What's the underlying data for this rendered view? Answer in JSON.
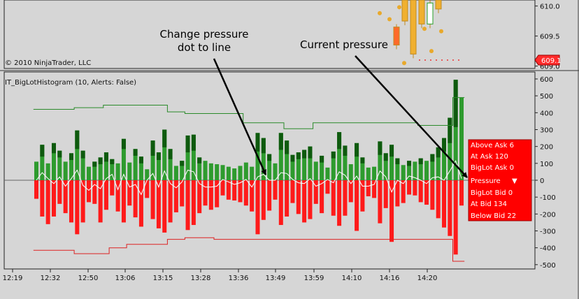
{
  "top_panel": {
    "copyright": "© 2010 NinjaTrader, LLC",
    "price_ticks": [
      "610.0",
      "609.5",
      "609.0"
    ],
    "price_tick_values": [
      610.0,
      609.5,
      609.0
    ],
    "current_price": "609.1",
    "current_price_value": 609.1,
    "ylim": [
      608.96,
      610.1
    ]
  },
  "indicator": {
    "title": "IT_BigLotHistogram (10, Alerts: False)",
    "y_ticks": [
      "600",
      "500",
      "400",
      "300",
      "200",
      "100",
      "0",
      "-100",
      "-200",
      "-300",
      "-400",
      "-500"
    ],
    "y_tick_values": [
      600,
      500,
      400,
      300,
      200,
      100,
      0,
      -100,
      -200,
      -300,
      -400,
      -500
    ]
  },
  "x_axis": {
    "labels": [
      "12:19",
      "12:32",
      "12:50",
      "13:06",
      "13:15",
      "13:28",
      "13:36",
      "13:49",
      "13:59",
      "14:10",
      "14:16",
      "14:20"
    ]
  },
  "info_box": {
    "above_ask": "Above Ask 6",
    "at_ask": "At Ask 120",
    "biglot_ask": "BigLot Ask 0",
    "pressure": "Pressure",
    "pressure_arrow": "▼",
    "biglot_bid": "BigLot Bid 0",
    "at_bid": "At Bid 134",
    "below_bid": "Below Bid 22"
  },
  "annotations": {
    "change_line1": "Change pressure",
    "change_line2": "dot to line",
    "current": "Current pressure"
  },
  "colors": {
    "ask_bar": "#2e9b2e",
    "ask_bar_dark": "#0e5a0e",
    "bid_bar": "#ff1a1a",
    "bid_bar_dark": "#8a0a0a",
    "upper_line": "#2a8a2a",
    "lower_line": "#dd2222",
    "info_bg": "#ff0000",
    "background": "#d6d6d6"
  },
  "chart_data": {
    "type": "bar",
    "ylim": [
      -515,
      630
    ],
    "ask": [
      110,
      210,
      100,
      220,
      175,
      110,
      160,
      295,
      175,
      80,
      110,
      135,
      165,
      125,
      100,
      245,
      105,
      185,
      140,
      65,
      235,
      165,
      300,
      185,
      85,
      115,
      265,
      270,
      135,
      115,
      100,
      95,
      90,
      80,
      70,
      85,
      105,
      80,
      280,
      250,
      155,
      100,
      280,
      235,
      150,
      165,
      180,
      200,
      110,
      145,
      75,
      170,
      285,
      205,
      95,
      220,
      135,
      75,
      80,
      230,
      160,
      210,
      130,
      90,
      115,
      110,
      130,
      115,
      155,
      195,
      250,
      370,
      595,
      490
    ],
    "ask_dark": [
      0,
      70,
      0,
      60,
      40,
      0,
      40,
      110,
      45,
      0,
      30,
      40,
      55,
      30,
      0,
      60,
      0,
      40,
      40,
      0,
      90,
      45,
      105,
      60,
      0,
      30,
      100,
      95,
      35,
      0,
      0,
      0,
      0,
      0,
      0,
      0,
      0,
      0,
      110,
      90,
      40,
      0,
      100,
      80,
      40,
      40,
      50,
      70,
      0,
      40,
      0,
      40,
      100,
      60,
      0,
      80,
      35,
      0,
      0,
      80,
      45,
      70,
      35,
      0,
      30,
      0,
      35,
      0,
      45,
      60,
      80,
      150,
      280,
      0
    ],
    "bid": [
      -110,
      -215,
      -260,
      -215,
      -140,
      -195,
      -250,
      -320,
      -250,
      -130,
      -140,
      -250,
      -175,
      -90,
      -185,
      -250,
      -150,
      -220,
      -275,
      -105,
      -230,
      -285,
      -310,
      -250,
      -190,
      -155,
      -295,
      -265,
      -195,
      -150,
      -175,
      -160,
      -90,
      -115,
      -120,
      -130,
      -150,
      -185,
      -320,
      -235,
      -180,
      -115,
      -265,
      -215,
      -135,
      -200,
      -250,
      -230,
      -140,
      -195,
      -80,
      -210,
      -270,
      -210,
      -130,
      -300,
      -185,
      -95,
      -105,
      -255,
      -165,
      -365,
      -155,
      -135,
      -85,
      -90,
      -130,
      -145,
      -175,
      -225,
      -280,
      -330,
      -440,
      -150
    ],
    "bid_dark": [
      -50,
      -80,
      -90,
      -70,
      -40,
      -60,
      -90,
      -110,
      -90,
      -40,
      -40,
      -90,
      -50,
      0,
      -60,
      -80,
      -40,
      -80,
      -100,
      0,
      -80,
      -110,
      -110,
      -90,
      -60,
      -50,
      -110,
      -100,
      -60,
      -40,
      -50,
      -40,
      0,
      0,
      0,
      0,
      -40,
      -60,
      -120,
      -80,
      -60,
      0,
      -100,
      -80,
      -40,
      -60,
      -90,
      -80,
      -40,
      -60,
      0,
      -70,
      -100,
      -70,
      -40,
      -110,
      -60,
      0,
      0,
      -90,
      -50,
      -140,
      -50,
      -40,
      0,
      0,
      -40,
      -40,
      -50,
      -80,
      -100,
      -120,
      -170,
      0
    ],
    "upper_line": [
      420,
      420,
      420,
      420,
      420,
      420,
      420,
      430,
      430,
      430,
      430,
      430,
      445,
      445,
      445,
      445,
      445,
      445,
      445,
      445,
      445,
      445,
      445,
      405,
      405,
      405,
      395,
      395,
      395,
      395,
      395,
      395,
      395,
      395,
      395,
      395,
      340,
      340,
      340,
      340,
      340,
      340,
      340,
      305,
      305,
      305,
      305,
      305,
      340,
      340,
      340,
      340,
      340,
      340,
      340,
      340,
      340,
      340,
      340,
      340,
      340,
      340,
      340,
      340,
      340,
      340,
      325,
      325,
      325,
      325,
      325,
      325,
      490,
      490
    ],
    "lower_line": [
      -415,
      -415,
      -415,
      -415,
      -415,
      -415,
      -415,
      -435,
      -435,
      -435,
      -435,
      -435,
      -435,
      -400,
      -400,
      -400,
      -380,
      -380,
      -380,
      -380,
      -380,
      -380,
      -380,
      -350,
      -350,
      -350,
      -340,
      -340,
      -340,
      -340,
      -340,
      -350,
      -350,
      -350,
      -350,
      -350,
      -350,
      -350,
      -350,
      -350,
      -350,
      -350,
      -350,
      -350,
      -350,
      -350,
      -350,
      -350,
      -350,
      -350,
      -350,
      -350,
      -350,
      -350,
      -350,
      -350,
      -350,
      -350,
      -350,
      -350,
      -350,
      -350,
      -350,
      -350,
      -350,
      -350,
      -350,
      -350,
      -350,
      -350,
      -350,
      -350,
      -480,
      -480
    ],
    "pressure": [
      0,
      45,
      10,
      -20,
      20,
      -35,
      10,
      60,
      -30,
      -60,
      -25,
      -50,
      10,
      35,
      -55,
      35,
      -40,
      -25,
      -85,
      0,
      40,
      -40,
      55,
      -20,
      -45,
      -10,
      60,
      50,
      -20,
      -40,
      -40,
      -35,
      5,
      -10,
      -25,
      -15,
      5,
      -40,
      20,
      35,
      0,
      0,
      45,
      40,
      5,
      -15,
      -20,
      10,
      -35,
      -20,
      5,
      -15,
      50,
      30,
      -20,
      25,
      -35,
      -35,
      -25,
      55,
      20,
      -70,
      0,
      -20,
      25,
      15,
      0,
      -20,
      15,
      20,
      0,
      55,
      115,
      10
    ]
  }
}
